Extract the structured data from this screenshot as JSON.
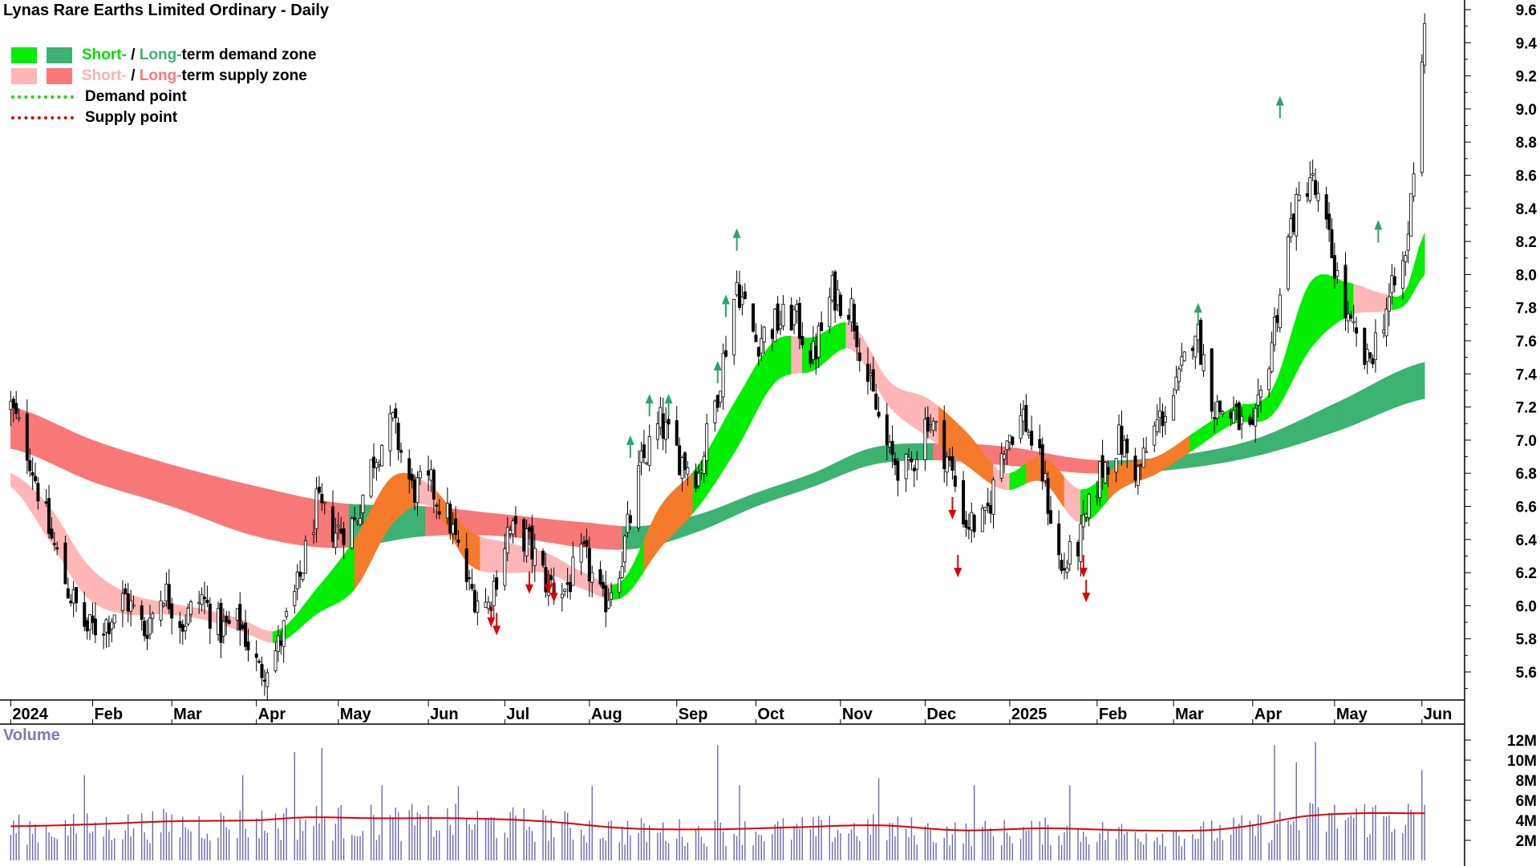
{
  "title": "Lynas Rare Earths Limited Ordinary - Daily",
  "legend": {
    "demand_short": "Short-",
    "demand_sep": " / ",
    "demand_long": "Long-",
    "demand_rest": "term demand zone",
    "supply_short": "Short-",
    "supply_sep": " / ",
    "supply_long": "Long-",
    "supply_rest": "term supply zone",
    "demand_point": "Demand point",
    "supply_point": "Supply point"
  },
  "colors": {
    "short_demand": "#00ee00",
    "long_demand": "#3cb371",
    "short_supply": "#ffb6b6",
    "long_supply": "#f87878",
    "overlap": "#f57a2a",
    "candle": "#000000",
    "volume_bar": "#6a6ab0",
    "volume_ma": "#e00000",
    "demand_arrow": "#2ea36a",
    "supply_arrow": "#e00000"
  },
  "volume_label": "Volume",
  "chart_data": [
    {
      "type": "candlestick",
      "title": "Lynas Rare Earths Limited Ordinary - Daily",
      "x_tick_labels": [
        "2024",
        "Feb",
        "Mar",
        "Apr",
        "May",
        "Jun",
        "Jul",
        "Aug",
        "Sep",
        "Oct",
        "Nov",
        "Dec",
        "2025",
        "Feb",
        "Mar",
        "Apr",
        "May",
        "Jun"
      ],
      "y_tick_labels": [
        "9.6",
        "9.4",
        "9.2",
        "9.0",
        "8.8",
        "8.6",
        "8.4",
        "8.2",
        "8.0",
        "7.8",
        "7.6",
        "7.4",
        "7.2",
        "7.0",
        "6.8",
        "6.6",
        "6.4",
        "6.2",
        "6.0",
        "5.8",
        "5.6"
      ],
      "ylim": [
        5.45,
        9.7
      ],
      "y_axis_side": "right",
      "close_path": [
        [
          "2024-01-02",
          7.2
        ],
        [
          "2024-01-09",
          6.9
        ],
        [
          "2024-01-16",
          6.45
        ],
        [
          "2024-01-23",
          6.1
        ],
        [
          "2024-01-30",
          5.85
        ],
        [
          "2024-02-06",
          5.9
        ],
        [
          "2024-02-13",
          6.05
        ],
        [
          "2024-02-20",
          5.85
        ],
        [
          "2024-02-27",
          6.1
        ],
        [
          "2024-03-05",
          5.9
        ],
        [
          "2024-03-12",
          6.05
        ],
        [
          "2024-03-19",
          5.85
        ],
        [
          "2024-03-26",
          5.9
        ],
        [
          "2024-04-02",
          5.6
        ],
        [
          "2024-04-09",
          5.75
        ],
        [
          "2024-04-16",
          6.1
        ],
        [
          "2024-04-23",
          6.6
        ],
        [
          "2024-04-30",
          6.45
        ],
        [
          "2024-05-07",
          6.5
        ],
        [
          "2024-05-14",
          6.9
        ],
        [
          "2024-05-21",
          7.1
        ],
        [
          "2024-05-28",
          6.7
        ],
        [
          "2024-06-04",
          6.72
        ],
        [
          "2024-06-11",
          6.5
        ],
        [
          "2024-06-18",
          6.1
        ],
        [
          "2024-06-25",
          6.0
        ],
        [
          "2024-07-02",
          6.45
        ],
        [
          "2024-07-09",
          6.4
        ],
        [
          "2024-07-16",
          6.15
        ],
        [
          "2024-07-23",
          6.1
        ],
        [
          "2024-07-30",
          6.3
        ],
        [
          "2024-08-06",
          6.0
        ],
        [
          "2024-08-13",
          6.3
        ],
        [
          "2024-08-20",
          6.85
        ],
        [
          "2024-08-27",
          7.1
        ],
        [
          "2024-09-03",
          6.9
        ],
        [
          "2024-09-10",
          6.8
        ],
        [
          "2024-09-17",
          7.3
        ],
        [
          "2024-09-24",
          7.95
        ],
        [
          "2024-10-01",
          7.6
        ],
        [
          "2024-10-08",
          7.7
        ],
        [
          "2024-10-15",
          7.75
        ],
        [
          "2024-10-22",
          7.5
        ],
        [
          "2024-10-29",
          7.9
        ],
        [
          "2024-11-05",
          7.8
        ],
        [
          "2024-11-12",
          7.3
        ],
        [
          "2024-11-19",
          6.9
        ],
        [
          "2024-11-26",
          6.8
        ],
        [
          "2024-12-03",
          7.15
        ],
        [
          "2024-12-10",
          6.9
        ],
        [
          "2024-12-17",
          6.5
        ],
        [
          "2024-12-24",
          6.5
        ],
        [
          "2024-12-31",
          7.0
        ],
        [
          "2025-01-07",
          7.15
        ],
        [
          "2025-01-14",
          6.8
        ],
        [
          "2025-01-21",
          6.2
        ],
        [
          "2025-01-28",
          6.4
        ],
        [
          "2025-02-04",
          6.8
        ],
        [
          "2025-02-11",
          7.0
        ],
        [
          "2025-02-18",
          6.8
        ],
        [
          "2025-02-25",
          7.1
        ],
        [
          "2025-03-04",
          7.3
        ],
        [
          "2025-03-11",
          7.7
        ],
        [
          "2025-03-18",
          7.2
        ],
        [
          "2025-03-25",
          7.15
        ],
        [
          "2025-04-01",
          7.0
        ],
        [
          "2025-04-08",
          7.6
        ],
        [
          "2025-04-15",
          8.3
        ],
        [
          "2025-04-22",
          8.6
        ],
        [
          "2025-04-29",
          8.2
        ],
        [
          "2025-05-06",
          7.7
        ],
        [
          "2025-05-13",
          7.45
        ],
        [
          "2025-05-20",
          7.8
        ],
        [
          "2025-05-27",
          8.1
        ],
        [
          "2025-06-03",
          9.3
        ]
      ],
      "short_term_zone": [
        [
          "2024-01-02",
          6.8,
          6.72
        ],
        [
          "2024-01-16",
          6.6,
          6.4
        ],
        [
          "2024-01-30",
          6.25,
          6.05
        ],
        [
          "2024-02-13",
          6.08,
          5.95
        ],
        [
          "2024-02-27",
          6.02,
          5.95
        ],
        [
          "2024-03-12",
          5.98,
          5.92
        ],
        [
          "2024-03-26",
          5.92,
          5.85
        ],
        [
          "2024-04-09",
          5.85,
          5.78
        ],
        [
          "2024-04-23",
          6.1,
          5.95
        ],
        [
          "2024-05-07",
          6.4,
          6.1
        ],
        [
          "2024-05-21",
          6.78,
          6.5
        ],
        [
          "2024-06-04",
          6.72,
          6.6
        ],
        [
          "2024-06-18",
          6.45,
          6.25
        ],
        [
          "2024-07-02",
          6.38,
          6.2
        ],
        [
          "2024-07-16",
          6.32,
          6.2
        ],
        [
          "2024-07-30",
          6.2,
          6.1
        ],
        [
          "2024-08-13",
          6.15,
          6.05
        ],
        [
          "2024-08-27",
          6.6,
          6.35
        ],
        [
          "2024-09-10",
          6.85,
          6.6
        ],
        [
          "2024-09-24",
          7.25,
          6.95
        ],
        [
          "2024-10-08",
          7.6,
          7.35
        ],
        [
          "2024-10-22",
          7.62,
          7.42
        ],
        [
          "2024-11-05",
          7.7,
          7.55
        ],
        [
          "2024-11-19",
          7.35,
          7.2
        ],
        [
          "2024-12-03",
          7.25,
          7.02
        ],
        [
          "2024-12-17",
          7.05,
          6.85
        ],
        [
          "2024-12-31",
          6.8,
          6.7
        ],
        [
          "2025-01-14",
          6.9,
          6.75
        ],
        [
          "2025-01-28",
          6.7,
          6.5
        ],
        [
          "2025-02-11",
          6.85,
          6.7
        ],
        [
          "2025-02-25",
          6.9,
          6.8
        ],
        [
          "2025-03-11",
          7.05,
          6.95
        ],
        [
          "2025-03-25",
          7.2,
          7.1
        ],
        [
          "2025-04-08",
          7.3,
          7.15
        ],
        [
          "2025-04-22",
          7.95,
          7.55
        ],
        [
          "2025-05-06",
          7.95,
          7.75
        ],
        [
          "2025-05-20",
          7.88,
          7.78
        ],
        [
          "2025-05-27",
          7.9,
          7.82
        ],
        [
          "2025-06-03",
          8.25,
          8.0
        ]
      ],
      "long_term_zone": [
        [
          "2024-01-02",
          7.2,
          6.95
        ],
        [
          "2024-02-01",
          7.0,
          6.75
        ],
        [
          "2024-03-01",
          6.85,
          6.6
        ],
        [
          "2024-04-01",
          6.72,
          6.42
        ],
        [
          "2024-05-01",
          6.62,
          6.35
        ],
        [
          "2024-06-01",
          6.6,
          6.42
        ],
        [
          "2024-07-01",
          6.55,
          6.42
        ],
        [
          "2024-08-01",
          6.5,
          6.35
        ],
        [
          "2024-08-20",
          6.48,
          6.35
        ],
        [
          "2024-09-10",
          6.55,
          6.45
        ],
        [
          "2024-10-01",
          6.68,
          6.6
        ],
        [
          "2024-10-22",
          6.8,
          6.72
        ],
        [
          "2024-11-12",
          6.95,
          6.85
        ],
        [
          "2024-12-03",
          6.98,
          6.88
        ],
        [
          "2024-12-31",
          6.96,
          6.85
        ],
        [
          "2025-02-01",
          6.88,
          6.8
        ],
        [
          "2025-03-01",
          6.9,
          6.82
        ],
        [
          "2025-04-01",
          7.0,
          6.9
        ],
        [
          "2025-05-01",
          7.22,
          7.05
        ],
        [
          "2025-06-03",
          7.47,
          7.25
        ]
      ],
      "demand_points": [
        [
          "2024-08-16",
          7.0
        ],
        [
          "2024-08-23",
          7.25
        ],
        [
          "2024-08-30",
          7.25
        ],
        [
          "2024-09-17",
          7.45
        ],
        [
          "2024-09-20",
          7.85
        ],
        [
          "2024-09-24",
          8.25
        ],
        [
          "2025-03-12",
          7.8
        ],
        [
          "2025-04-11",
          9.05
        ],
        [
          "2025-05-17",
          8.3
        ]
      ],
      "supply_points": [
        [
          "2024-06-26",
          5.9
        ],
        [
          "2024-06-28",
          5.85
        ],
        [
          "2024-07-10",
          6.1
        ],
        [
          "2024-07-17",
          6.1
        ],
        [
          "2024-07-19",
          6.05
        ],
        [
          "2024-12-12",
          6.55
        ],
        [
          "2024-12-14",
          6.2
        ],
        [
          "2025-01-29",
          6.2
        ],
        [
          "2025-01-30",
          6.05
        ]
      ]
    },
    {
      "type": "bar",
      "title": "Volume",
      "y_tick_labels": [
        "12M",
        "10M",
        "8M",
        "6M",
        "4M",
        "2M"
      ],
      "ylim": [
        0,
        13
      ],
      "volume_ma_path": [
        [
          "2024-01-02",
          3.4
        ],
        [
          "2024-02-01",
          3.6
        ],
        [
          "2024-03-01",
          3.9
        ],
        [
          "2024-04-01",
          4.0
        ],
        [
          "2024-04-20",
          4.3
        ],
        [
          "2024-05-15",
          4.2
        ],
        [
          "2024-06-15",
          4.2
        ],
        [
          "2024-07-15",
          3.9
        ],
        [
          "2024-08-15",
          3.2
        ],
        [
          "2024-09-15",
          3.1
        ],
        [
          "2024-10-15",
          3.3
        ],
        [
          "2024-11-15",
          3.5
        ],
        [
          "2024-12-15",
          3.0
        ],
        [
          "2025-01-15",
          3.2
        ],
        [
          "2025-02-15",
          3.0
        ],
        [
          "2025-03-15",
          3.0
        ],
        [
          "2025-04-01",
          3.5
        ],
        [
          "2025-04-20",
          4.4
        ],
        [
          "2025-05-10",
          4.7
        ],
        [
          "2025-06-03",
          4.7
        ]
      ],
      "volume_spikes": [
        [
          "2024-01-29",
          8.5
        ],
        [
          "2024-03-27",
          8.5
        ],
        [
          "2024-04-15",
          10.8
        ],
        [
          "2024-04-25",
          11.2
        ],
        [
          "2024-05-17",
          7.5
        ],
        [
          "2024-06-14",
          7.4
        ],
        [
          "2024-08-02",
          7.4
        ],
        [
          "2024-09-17",
          11.5
        ],
        [
          "2024-09-25",
          7.5
        ],
        [
          "2024-11-15",
          8.2
        ],
        [
          "2024-12-20",
          7.5
        ],
        [
          "2025-01-24",
          7.5
        ],
        [
          "2025-04-09",
          11.5
        ],
        [
          "2025-04-17",
          9.8
        ],
        [
          "2025-04-24",
          11.8
        ],
        [
          "2025-06-02",
          9.0
        ]
      ]
    }
  ]
}
